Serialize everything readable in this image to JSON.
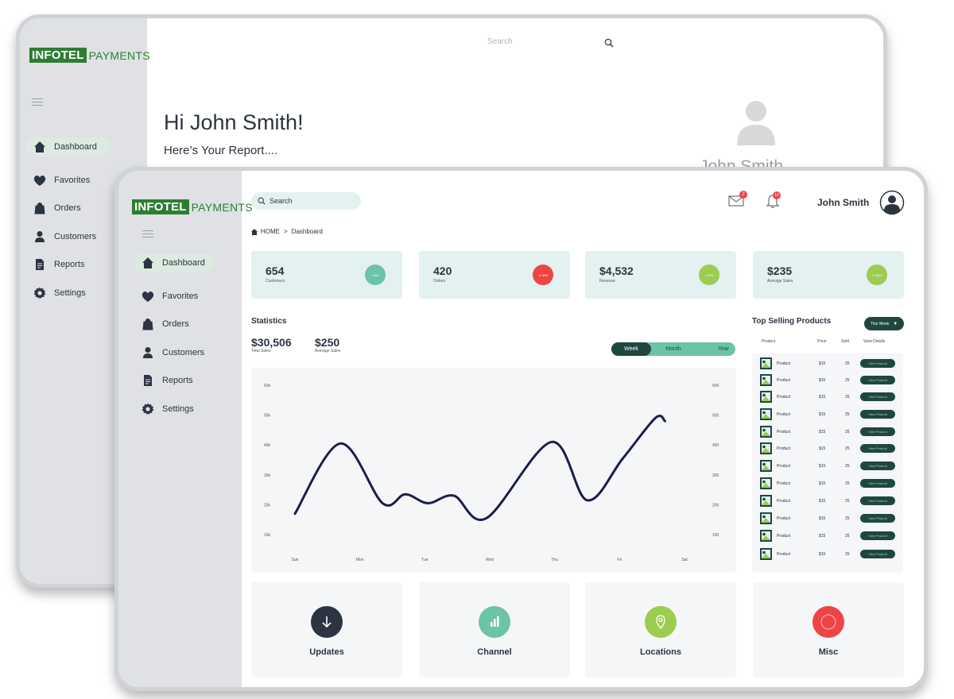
{
  "back": {
    "logo_bold": "INFOTEL",
    "logo_light": "PAYMENTS",
    "search_placeholder": "Search",
    "greeting": "Hi John Smith!",
    "subgreeting": "Here’s Your Report....",
    "username": "John Smith",
    "nav": [
      {
        "label": "Dashboard",
        "icon": "home-icon",
        "active": true
      },
      {
        "label": "Favorites",
        "icon": "heart-icon"
      },
      {
        "label": "Orders",
        "icon": "bag-icon"
      },
      {
        "label": "Customers",
        "icon": "person-icon"
      },
      {
        "label": "Reports",
        "icon": "document-icon"
      },
      {
        "label": "Settings",
        "icon": "gear-icon"
      }
    ]
  },
  "front": {
    "logo_bold": "INFOTEL",
    "logo_light": "PAYMENTS",
    "search_placeholder": "Search",
    "username": "John Smith",
    "mail_badge": "2",
    "bell_badge": "10",
    "breadcrumb": {
      "home": "HOME",
      "sep": ">",
      "current": "Dashboard"
    },
    "nav": [
      {
        "label": "Dashboard",
        "icon": "home-icon",
        "active": true
      },
      {
        "label": "Favorites",
        "icon": "heart-icon"
      },
      {
        "label": "Orders",
        "icon": "bag-icon"
      },
      {
        "label": "Customers",
        "icon": "person-icon"
      },
      {
        "label": "Reports",
        "icon": "document-icon"
      },
      {
        "label": "Settings",
        "icon": "gear-icon"
      }
    ],
    "cards": [
      {
        "value": "654",
        "label": "Customers",
        "pct": "+4%",
        "color": "#6cc4a8"
      },
      {
        "value": "420",
        "label": "Orders",
        "pct": "-3.05%",
        "color": "#ee4444"
      },
      {
        "value": "$4,532",
        "label": "Revenue",
        "pct": "+13%",
        "color": "#9ccc50"
      },
      {
        "value": "$235",
        "label": "Average Sales",
        "pct": "+1.50%",
        "color": "#9ccc50"
      }
    ],
    "statistics": {
      "title": "Statistics",
      "total_sales": "$30,506",
      "total_sales_label": "Total Sales",
      "avg_sales": "$250",
      "avg_sales_label": "Average Sales",
      "toggle": [
        "Week",
        "Month",
        "Year"
      ],
      "toggle_active": "Week"
    },
    "top_selling": {
      "title": "Top Selling Products",
      "filter": "This Week",
      "headers": [
        "Product",
        "Price",
        "Sold",
        "View Details"
      ],
      "rows": [
        {
          "product": "Product",
          "price": "$15",
          "sold": "25",
          "action": "View Product"
        },
        {
          "product": "Product",
          "price": "$15",
          "sold": "25",
          "action": "View Product"
        },
        {
          "product": "Product",
          "price": "$15",
          "sold": "25",
          "action": "View Product"
        },
        {
          "product": "Product",
          "price": "$15",
          "sold": "25",
          "action": "View Product"
        },
        {
          "product": "Product",
          "price": "$15",
          "sold": "25",
          "action": "View Product"
        },
        {
          "product": "Product",
          "price": "$15",
          "sold": "25",
          "action": "View Product"
        },
        {
          "product": "Product",
          "price": "$15",
          "sold": "25",
          "action": "View Product"
        },
        {
          "product": "Product",
          "price": "$15",
          "sold": "25",
          "action": "View Product"
        },
        {
          "product": "Product",
          "price": "$15",
          "sold": "25",
          "action": "View Product"
        },
        {
          "product": "Product",
          "price": "$15",
          "sold": "25",
          "action": "View Product"
        },
        {
          "product": "Product",
          "price": "$15",
          "sold": "25",
          "action": "View Product"
        },
        {
          "product": "Product",
          "price": "$15",
          "sold": "25",
          "action": "View Product"
        }
      ]
    },
    "bottom_tiles": [
      {
        "label": "Updates",
        "icon": "arrow-down-icon",
        "color": "#2b3440"
      },
      {
        "label": "Channel",
        "icon": "bar-chart-icon",
        "color": "#6cc4a8"
      },
      {
        "label": "Locations",
        "icon": "location-pin-icon",
        "color": "#9ccc50"
      },
      {
        "label": "Misc",
        "icon": "circle-icon",
        "color": "#ee4444"
      }
    ]
  },
  "chart_data": {
    "type": "line",
    "categories": [
      "Sun",
      "Mon",
      "Tue",
      "Wed",
      "Thu",
      "Fri",
      "Sat"
    ],
    "left_ticks": [
      "60k",
      "50k",
      "40k",
      "30k",
      "20k",
      "10k"
    ],
    "right_ticks": [
      "600",
      "500",
      "400",
      "300",
      "200",
      "100"
    ],
    "ylim": [
      10000,
      60000
    ],
    "series": [
      {
        "points": [
          [
            0,
            17000
          ],
          [
            0.7,
            40500
          ],
          [
            1.35,
            20500
          ],
          [
            1.7,
            23500
          ],
          [
            2.05,
            20500
          ],
          [
            2.45,
            23000
          ],
          [
            2.95,
            15500
          ],
          [
            3.95,
            41000
          ],
          [
            4.5,
            21500
          ],
          [
            5.05,
            35500
          ],
          [
            5.55,
            49000
          ],
          [
            5.7,
            48000
          ]
        ],
        "color": "#1f1a4e"
      }
    ]
  }
}
